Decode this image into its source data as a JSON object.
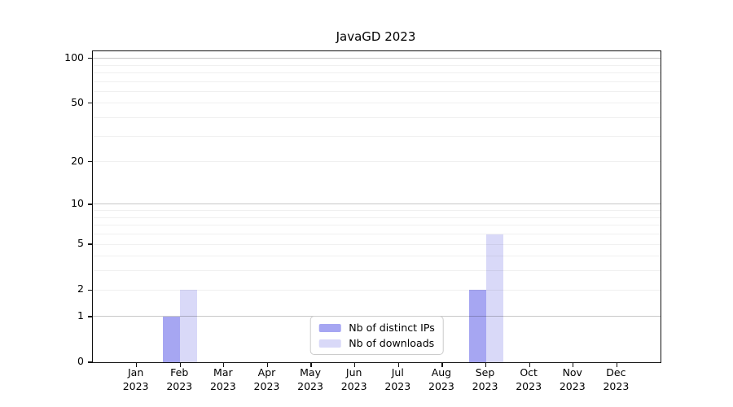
{
  "chart_data": {
    "type": "bar",
    "title": "JavaGD 2023",
    "categories": [
      "Jan",
      "Feb",
      "Mar",
      "Apr",
      "May",
      "Jun",
      "Jul",
      "Aug",
      "Sep",
      "Oct",
      "Nov",
      "Dec"
    ],
    "x_tick_year": "2023",
    "series": [
      {
        "name": "Nb of distinct IPs",
        "color": "#a6a6f2",
        "values": [
          0,
          1,
          0,
          0,
          0,
          0,
          0,
          0,
          2,
          0,
          0,
          0
        ]
      },
      {
        "name": "Nb of downloads",
        "color": "#d9d9f8",
        "values": [
          0,
          2,
          0,
          0,
          0,
          0,
          0,
          0,
          6,
          0,
          0,
          0
        ]
      }
    ],
    "y_axis": {
      "scale": "log10(value+1)",
      "tick_values": [
        0,
        1,
        2,
        5,
        10,
        20,
        50,
        100
      ],
      "major_gridlines": [
        1,
        10,
        100
      ],
      "minor_gridlines": [
        2,
        3,
        4,
        5,
        6,
        7,
        8,
        9,
        20,
        30,
        40,
        50,
        60,
        70,
        80,
        90
      ],
      "top_value": 111
    },
    "legend": {
      "position": "lower center",
      "entries": [
        "Nb of distinct IPs",
        "Nb of downloads"
      ]
    },
    "grid": true
  },
  "colors": {
    "background": "#ffffff",
    "spine": "#111111",
    "bar_distinct_ips": "#a6a6f2",
    "bar_downloads": "#d9d9f8",
    "legend_border": "#cccccc",
    "text": "#000000"
  }
}
